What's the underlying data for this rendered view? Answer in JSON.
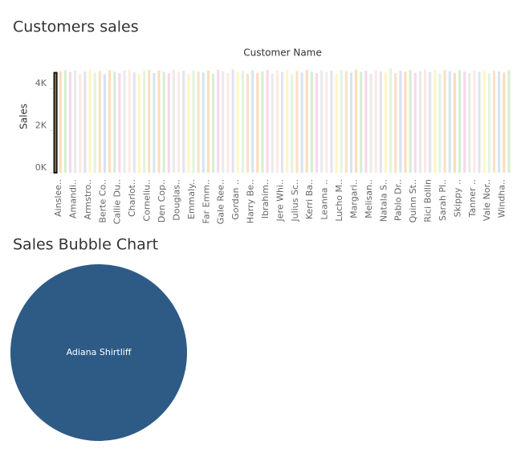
{
  "chart_data": [
    {
      "type": "bar",
      "title": "Customers sales",
      "x_header": "Customer Name",
      "y_label": "Sales",
      "categories": [
        "Ainslee..",
        null,
        null,
        "Amandi..",
        null,
        null,
        "Armstro..",
        null,
        null,
        "Berte Co..",
        null,
        null,
        "Callie Du..",
        null,
        null,
        "Charlot..",
        null,
        null,
        "Corneliu..",
        null,
        null,
        "Den Cop..",
        null,
        null,
        "Douglas..",
        null,
        null,
        "Emmaly..",
        null,
        null,
        "Far Emm..",
        null,
        null,
        "Gale Ree..",
        null,
        null,
        "Gordan ..",
        null,
        null,
        "Harry Be..",
        null,
        null,
        "Ibrahim..",
        null,
        null,
        "Jere Whi..",
        null,
        null,
        "Julius Sc..",
        null,
        null,
        "Kerri Ba..",
        null,
        null,
        "Leanna ..",
        null,
        null,
        "Lucho M..",
        null,
        null,
        "Margari..",
        null,
        null,
        "Melisan..",
        null,
        null,
        "Natala S..",
        null,
        null,
        "Pablo Dr..",
        null,
        null,
        "Quinn St..",
        null,
        null,
        "Rici Bollin",
        null,
        null,
        "Sarah Pl..",
        null,
        null,
        "Skippy ..",
        null,
        null,
        "Tanner ..",
        null,
        null,
        "Vale Nor..",
        null,
        null,
        "Windha..",
        null,
        null
      ],
      "values": [
        4750,
        4820,
        4880,
        4790,
        4860,
        4700,
        4810,
        4890,
        4760,
        4840,
        4680,
        4870,
        4800,
        4730,
        4850,
        4900,
        4770,
        4690,
        4830,
        4880,
        4740,
        4860,
        4800,
        4720,
        4890,
        4780,
        4840,
        4700,
        4870,
        4810,
        4760,
        4850,
        4690,
        4880,
        4820,
        4740,
        4900,
        4780,
        4830,
        4700,
        4860,
        4750,
        4810,
        4880,
        4720,
        4840,
        4790,
        4870,
        4680,
        4830,
        4760,
        4890,
        4800,
        4730,
        4860,
        4780,
        4850,
        4710,
        4880,
        4820,
        4750,
        4900,
        4790,
        4840,
        4700,
        4870,
        4810,
        4760,
        4960,
        4730,
        4850,
        4800,
        4880,
        4740,
        4830,
        4920,
        4780,
        4860,
        4710,
        4890,
        4820,
        4750,
        4870,
        4800,
        4730,
        4850,
        4790,
        4880,
        4720,
        4840,
        4810,
        4760,
        4870
      ],
      "colors": [
        "#c6dbef",
        "#fdd0a2",
        "#c7e9c0",
        "#f4cae4",
        "#e3e3e3",
        "#fde0dd",
        "#dadaeb",
        "#fff2ae",
        "#d9f0d3",
        "#f9d5b0"
      ],
      "highlight_index": 0,
      "highlight_color": "#d9b26a",
      "ylim": [
        0,
        5420
      ],
      "yticks": [
        {
          "value": 0,
          "label": "0K"
        },
        {
          "value": 2000,
          "label": "2K"
        },
        {
          "value": 4000,
          "label": "4K"
        }
      ]
    },
    {
      "type": "bubble",
      "title": "Sales Bubble Chart",
      "categories": [
        "Adiana Shirtliff"
      ],
      "values": [
        4750
      ],
      "color": "#2d5b86"
    }
  ]
}
